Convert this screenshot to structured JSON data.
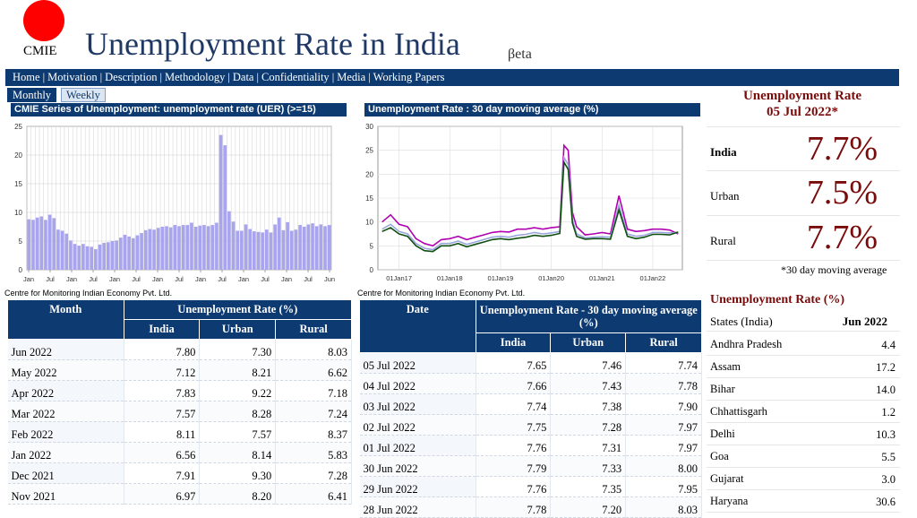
{
  "header": {
    "logo_text": "CMIE",
    "title": "Unemployment Rate in India",
    "beta": "βeta"
  },
  "nav": [
    "Home",
    "Motivation",
    "Description",
    "Methodology",
    "Data",
    "Confidentiality",
    "Media",
    "Working Papers"
  ],
  "tabs": {
    "monthly": "Monthly",
    "weekly": "Weekly"
  },
  "colors": {
    "navy": "#0d3a70",
    "maroon": "#7a0b0b",
    "bar": "#a9a4ee",
    "india": "#9aa6dc",
    "urban": "#b000b0",
    "rural": "#0f4f10"
  },
  "chart_left": {
    "title": "CMIE Series of Unemployment: unemployment rate (UER) (>=15) ",
    "credit": "Centre for Monitoring Indian Economy Pvt. Ltd.",
    "chart_data": {
      "type": "bar",
      "ylim": [
        0,
        25
      ],
      "yticks": [
        0,
        5,
        10,
        15,
        20,
        25
      ],
      "xtick_labels": [
        "Jan",
        "Jul",
        "Jan",
        "Jul",
        "Jan",
        "Jul",
        "Jan",
        "Jul",
        "Jan",
        "Jul",
        "Jan",
        "Jul",
        "Jan",
        "Jul",
        "Jun"
      ],
      "values": [
        8.8,
        8.7,
        9.1,
        9.3,
        8.7,
        9.6,
        9.0,
        7.0,
        6.8,
        6.3,
        5.1,
        4.5,
        4.2,
        4.5,
        4.1,
        4.0,
        3.6,
        4.4,
        4.7,
        4.8,
        5.0,
        5.1,
        5.6,
        6.1,
        5.8,
        5.5,
        6.0,
        6.4,
        6.9,
        7.1,
        7.0,
        7.3,
        7.5,
        7.6,
        7.4,
        7.8,
        7.6,
        7.8,
        7.8,
        8.2,
        7.5,
        7.7,
        7.8,
        7.6,
        7.8,
        8.2,
        23.5,
        21.7,
        10.2,
        8.4,
        6.8,
        6.8,
        7.9,
        7.1,
        6.7,
        6.6,
        6.5,
        7.0,
        6.5,
        7.9,
        9.1,
        6.9,
        8.3,
        6.8,
        7.0,
        7.8,
        7.5,
        7.9,
        8.1,
        7.6,
        7.9,
        7.6,
        7.8
      ]
    }
  },
  "chart_right": {
    "title": "Unemployment Rate : 30 day moving average (%)",
    "credit": "Centre for Monitoring Indian Economy Pvt. Ltd.",
    "chart_data": {
      "type": "line",
      "ylim": [
        0,
        30
      ],
      "yticks": [
        0,
        5,
        10,
        15,
        20,
        25,
        30
      ],
      "xtick_labels": [
        "01Jan17",
        "01Jan18",
        "01Jan19",
        "01Jan20",
        "01Jan21",
        "01Jan22"
      ],
      "x_dates": [
        "2016-09",
        "2016-11",
        "2017-01",
        "2017-03",
        "2017-05",
        "2017-07",
        "2017-09",
        "2017-11",
        "2018-01",
        "2018-03",
        "2018-05",
        "2018-07",
        "2018-09",
        "2018-11",
        "2019-01",
        "2019-03",
        "2019-05",
        "2019-07",
        "2019-09",
        "2019-11",
        "2020-01",
        "2020-03",
        "2020-04",
        "2020-05",
        "2020-06",
        "2020-07",
        "2020-09",
        "2020-11",
        "2021-01",
        "2021-03",
        "2021-05",
        "2021-07",
        "2021-09",
        "2021-11",
        "2022-01",
        "2022-03",
        "2022-05",
        "2022-07"
      ],
      "series": [
        {
          "name": "India",
          "values": [
            8.5,
            9.5,
            8.0,
            7.5,
            5.5,
            4.5,
            4.2,
            5.5,
            5.5,
            6.0,
            5.3,
            5.8,
            6.3,
            6.8,
            7.0,
            6.8,
            7.2,
            7.4,
            7.8,
            7.5,
            7.7,
            8.0,
            23.5,
            22.0,
            10.5,
            7.5,
            6.7,
            6.8,
            6.9,
            6.8,
            13.5,
            7.5,
            7.0,
            7.2,
            7.8,
            7.8,
            7.7,
            7.8
          ]
        },
        {
          "name": "Urban",
          "values": [
            10.0,
            11.5,
            9.5,
            9.0,
            6.5,
            5.5,
            5.0,
            6.3,
            6.5,
            7.0,
            6.3,
            6.8,
            7.3,
            7.8,
            8.0,
            7.9,
            8.5,
            8.5,
            8.8,
            8.5,
            8.8,
            9.0,
            26.0,
            25.0,
            12.0,
            9.0,
            7.3,
            7.5,
            7.8,
            7.5,
            15.5,
            8.5,
            8.0,
            8.2,
            8.5,
            8.5,
            8.3,
            7.5
          ]
        },
        {
          "name": "Rural",
          "values": [
            8.0,
            8.8,
            7.5,
            7.0,
            5.0,
            4.0,
            3.8,
            5.0,
            5.0,
            5.5,
            4.8,
            5.3,
            5.8,
            6.3,
            6.5,
            6.3,
            6.6,
            6.8,
            7.2,
            7.0,
            7.2,
            7.6,
            22.5,
            21.0,
            9.8,
            7.0,
            6.4,
            6.5,
            6.5,
            6.4,
            12.5,
            7.0,
            6.5,
            6.8,
            7.4,
            7.4,
            7.3,
            7.9
          ]
        }
      ]
    }
  },
  "monthly_table": {
    "headers": {
      "col1": "Month",
      "group": "Unemployment Rate (%)",
      "india": "India",
      "urban": "Urban",
      "rural": "Rural"
    },
    "rows": [
      [
        "Jun 2022",
        "7.80",
        "7.30",
        "8.03"
      ],
      [
        "May 2022",
        "7.12",
        "8.21",
        "6.62"
      ],
      [
        "Apr 2022",
        "7.83",
        "9.22",
        "7.18"
      ],
      [
        "Mar 2022",
        "7.57",
        "8.28",
        "7.24"
      ],
      [
        "Feb 2022",
        "8.11",
        "7.57",
        "8.37"
      ],
      [
        "Jan 2022",
        "6.56",
        "8.14",
        "5.83"
      ],
      [
        "Dec 2021",
        "7.91",
        "9.30",
        "7.28"
      ],
      [
        "Nov 2021",
        "6.97",
        "8.20",
        "6.41"
      ]
    ]
  },
  "daily_table": {
    "headers": {
      "col1": "Date",
      "group": "Unemployment Rate - 30 day moving average (%)",
      "india": "India",
      "urban": "Urban",
      "rural": "Rural"
    },
    "rows": [
      [
        "05 Jul 2022",
        "7.65",
        "7.46",
        "7.74"
      ],
      [
        "04 Jul 2022",
        "7.66",
        "7.43",
        "7.78"
      ],
      [
        "03 Jul 2022",
        "7.74",
        "7.38",
        "7.90"
      ],
      [
        "02 Jul 2022",
        "7.75",
        "7.28",
        "7.97"
      ],
      [
        "01 Jul 2022",
        "7.76",
        "7.31",
        "7.97"
      ],
      [
        "30 Jun 2022",
        "7.79",
        "7.33",
        "8.00"
      ],
      [
        "29 Jun 2022",
        "7.76",
        "7.35",
        "7.95"
      ],
      [
        "28 Jun 2022",
        "7.78",
        "7.20",
        "8.03"
      ]
    ]
  },
  "summary": {
    "title_line1": "Unemployment Rate",
    "title_line2": "05 Jul 2022*",
    "india_label": "India",
    "india_value": "7.7%",
    "urban_label": "Urban",
    "urban_value": "7.5%",
    "rural_label": "Rural",
    "rural_value": "7.7%",
    "note": "*30 day moving average"
  },
  "states": {
    "title": "Unemployment Rate (%)",
    "col_label": "States (India)",
    "col_month": "Jun 2022",
    "rows": [
      [
        "Andhra Pradesh",
        "4.4"
      ],
      [
        "Assam",
        "17.2"
      ],
      [
        "Bihar",
        "14.0"
      ],
      [
        "Chhattisgarh",
        "1.2"
      ],
      [
        "Delhi",
        "10.3"
      ],
      [
        "Goa",
        "5.5"
      ],
      [
        "Gujarat",
        "3.0"
      ],
      [
        "Haryana",
        "30.6"
      ]
    ]
  }
}
